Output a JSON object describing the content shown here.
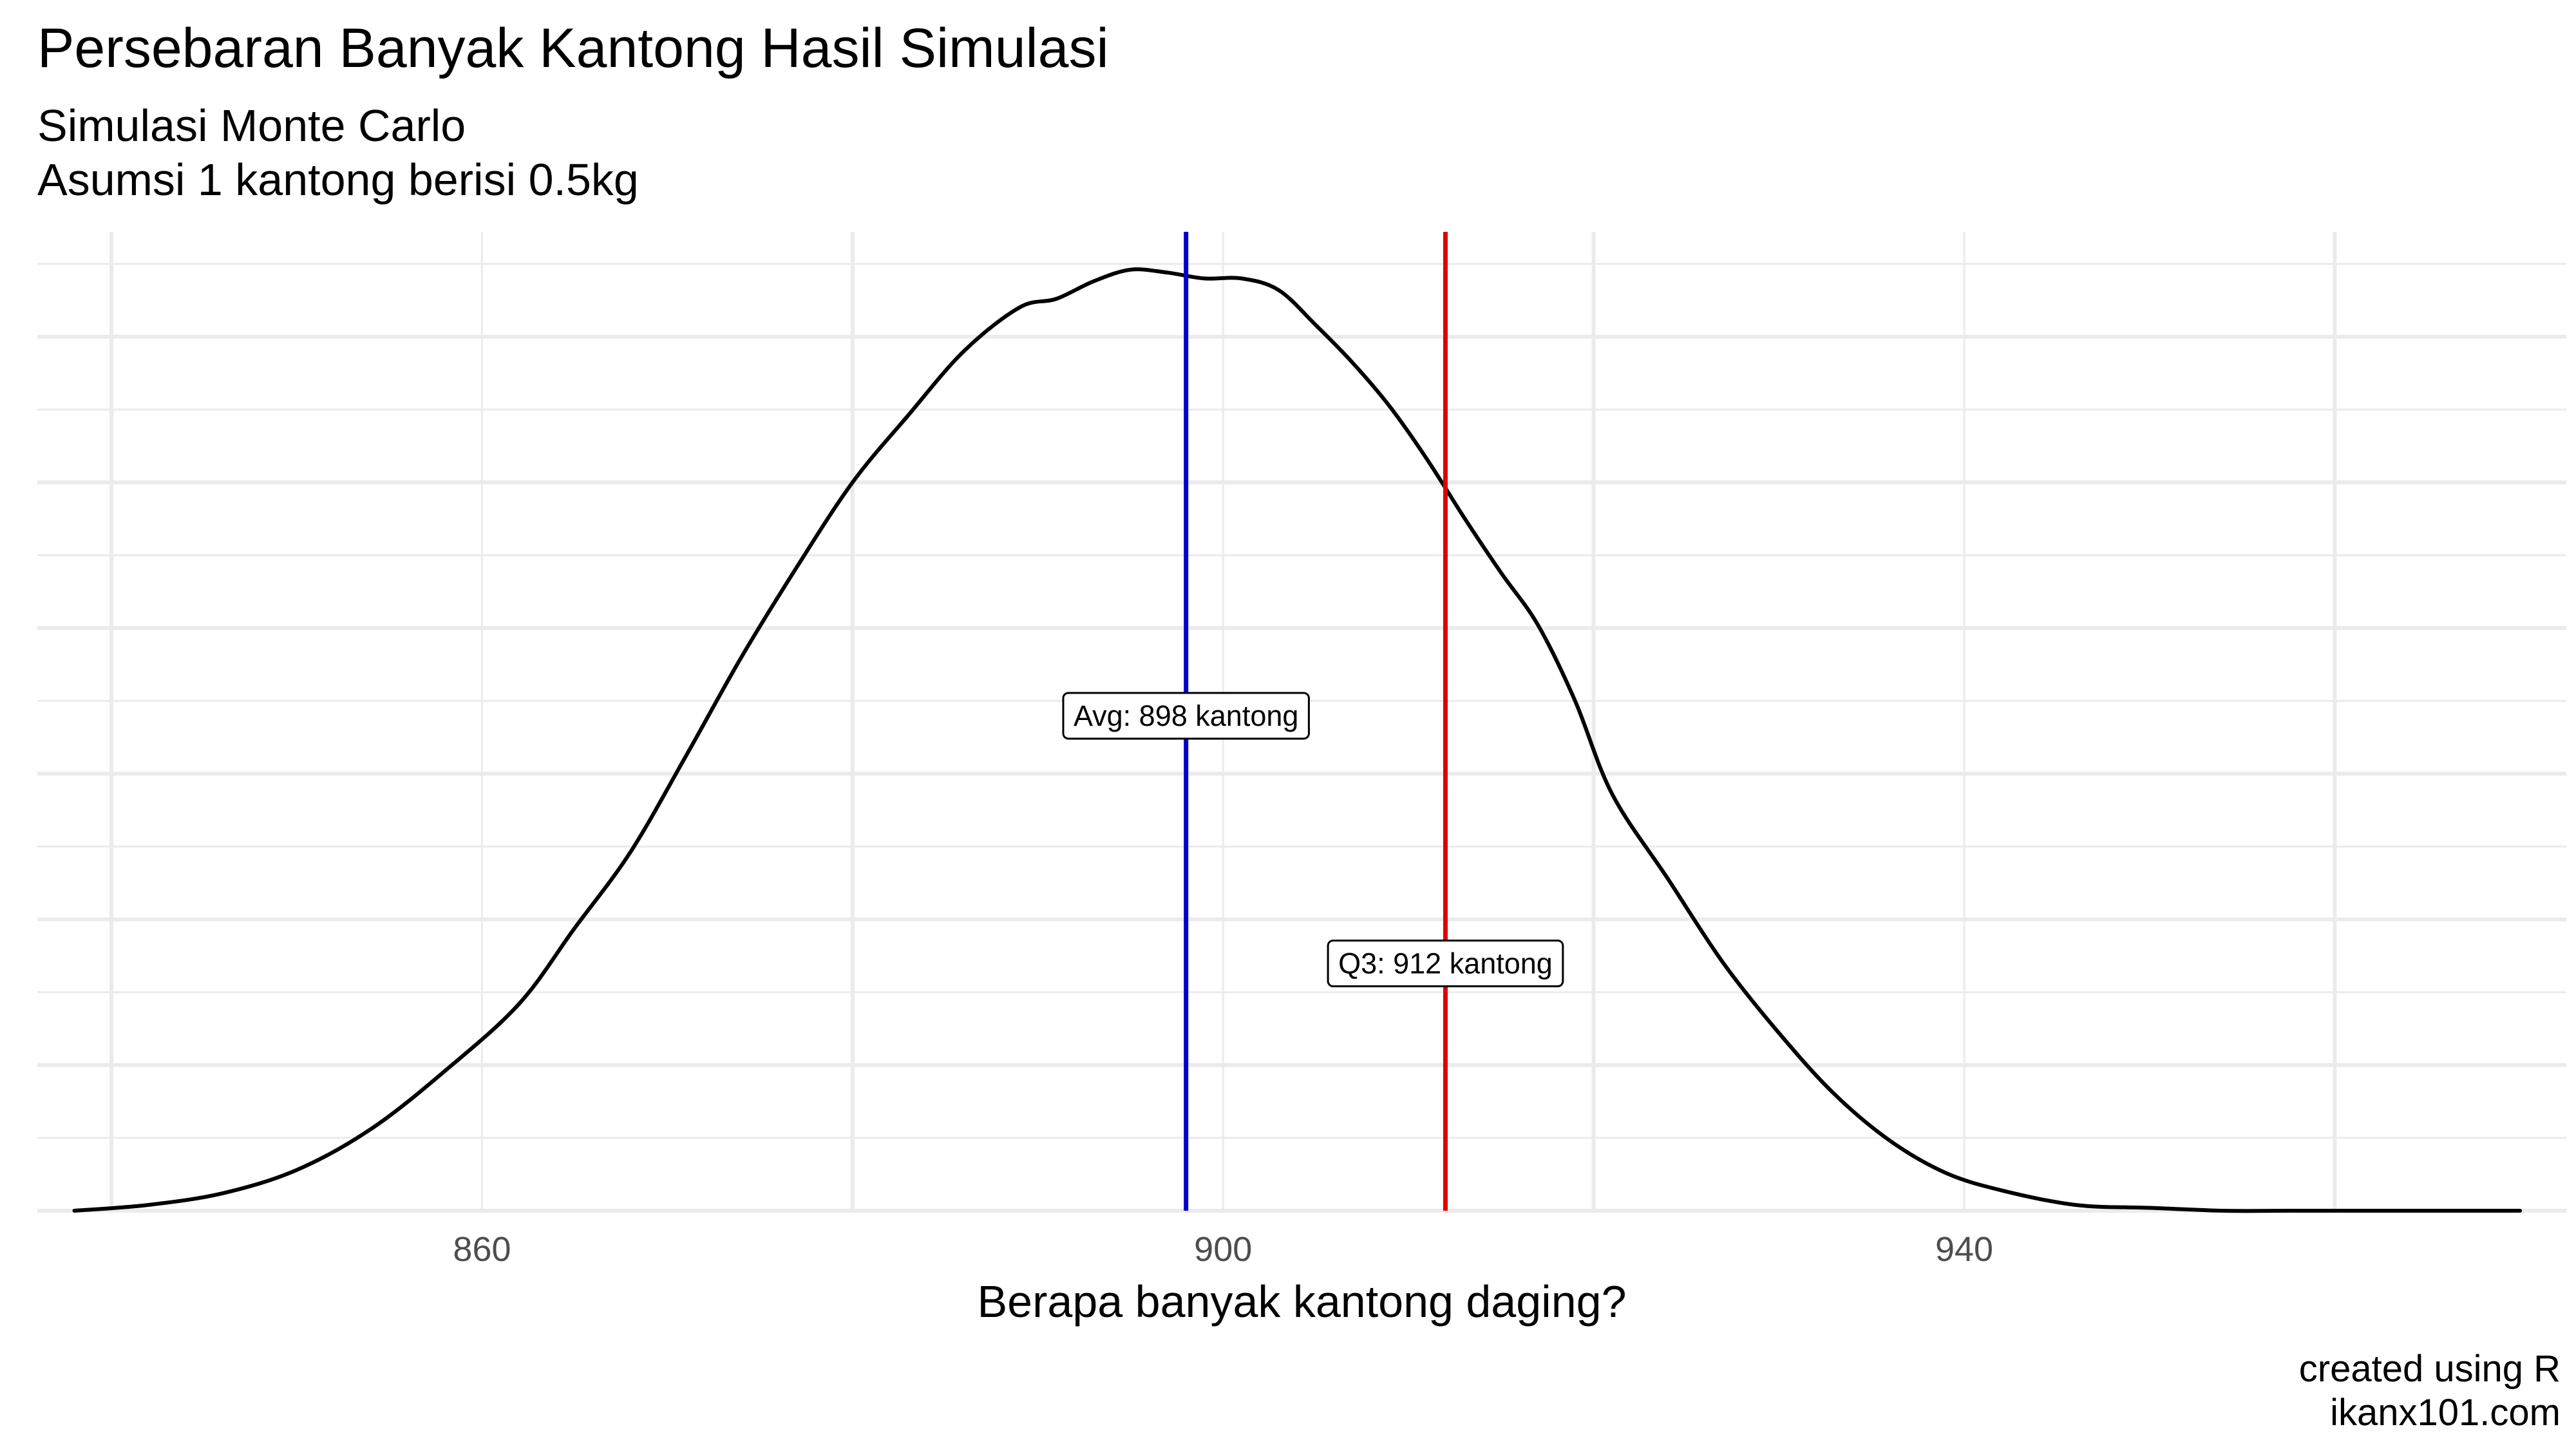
{
  "header": {
    "title": "Persebaran Banyak Kantong Hasil Simulasi",
    "subtitle_line1": "Simulasi Monte Carlo",
    "subtitle_line2": "Asumsi 1 kantong berisi 0.5kg"
  },
  "caption": {
    "line1": "created using R",
    "line2": "ikanx101.com"
  },
  "chart_data": {
    "type": "line",
    "title": "Persebaran Banyak Kantong Hasil Simulasi",
    "subtitle": "Simulasi Monte Carlo / Asumsi 1 kantong berisi 0.5kg",
    "xlabel": "Berapa banyak kantong daging?",
    "ylabel": "",
    "xlim": [
      836.0,
      972.5
    ],
    "ylim": [
      0,
      0.0336
    ],
    "x_ticks": [
      860,
      900,
      940
    ],
    "x_tick_labels": [
      "860",
      "900",
      "940"
    ],
    "y_tick_labels_shown": false,
    "grid": true,
    "series": [
      {
        "color": "#000000",
        "x": [
          838,
          842,
          846,
          850,
          854,
          858,
          862,
          865,
          868,
          871,
          874,
          877,
          880,
          883,
          886,
          889,
          891,
          893,
          895,
          897,
          899,
          901,
          903,
          905,
          907,
          909,
          911,
          913,
          915,
          917,
          919,
          921,
          924,
          927,
          930,
          933,
          936,
          939,
          942,
          946,
          950,
          954,
          958,
          962,
          966,
          970
        ],
        "y": [
          0.0,
          0.0002,
          0.0006,
          0.0014,
          0.0028,
          0.0048,
          0.0071,
          0.0097,
          0.0123,
          0.0156,
          0.019,
          0.0221,
          0.025,
          0.0273,
          0.0295,
          0.031,
          0.0313,
          0.0319,
          0.0323,
          0.0322,
          0.032,
          0.032,
          0.0316,
          0.0304,
          0.0291,
          0.0276,
          0.0258,
          0.0238,
          0.0219,
          0.0201,
          0.0175,
          0.0143,
          0.0114,
          0.0085,
          0.0061,
          0.004,
          0.0024,
          0.0013,
          0.0007,
          0.0002,
          0.0001,
          0.0,
          0.0,
          0.0,
          0.0,
          0.0
        ]
      }
    ],
    "vlines": [
      {
        "x": 898,
        "color": "#0000cc",
        "label": "Avg: 898 kantong",
        "label_y": 0.017
      },
      {
        "x": 912,
        "color": "#dd0000",
        "label": "Q3: 912 kantong",
        "label_y": 0.0085
      }
    ]
  }
}
